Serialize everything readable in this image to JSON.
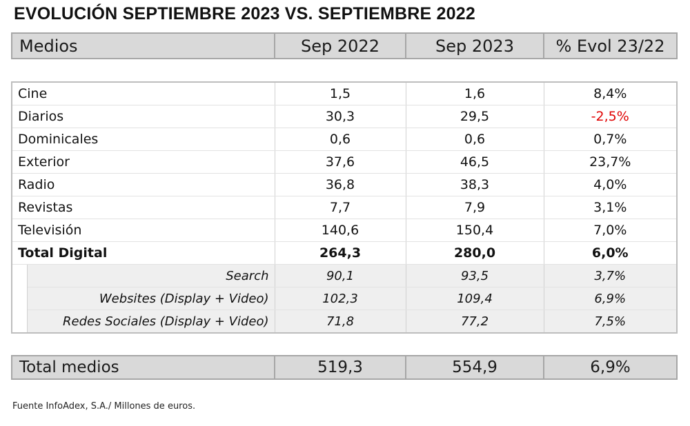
{
  "title": "EVOLUCIÓN SEPTIEMBRE 2023 VS. SEPTIEMBRE 2022",
  "header": [
    "Medios",
    "Sep 2022",
    "Sep 2023",
    "% Evol 23/22"
  ],
  "rows": [
    {
      "label": "Cine",
      "sep2022": "1,5",
      "sep2023": "1,6",
      "evol": "8,4%"
    },
    {
      "label": "Diarios",
      "sep2022": "30,3",
      "sep2023": "29,5",
      "evol": "-2,5%",
      "negative": true
    },
    {
      "label": "Dominicales",
      "sep2022": "0,6",
      "sep2023": "0,6",
      "evol": "0,7%"
    },
    {
      "label": "Exterior",
      "sep2022": "37,6",
      "sep2023": "46,5",
      "evol": "23,7%"
    },
    {
      "label": "Radio",
      "sep2022": "36,8",
      "sep2023": "38,3",
      "evol": "4,0%"
    },
    {
      "label": "Revistas",
      "sep2022": "7,7",
      "sep2023": "7,9",
      "evol": "3,1%"
    },
    {
      "label": "Televisión",
      "sep2022": "140,6",
      "sep2023": "150,4",
      "evol": "7,0%"
    },
    {
      "label": "Total Digital",
      "sep2022": "264,3",
      "sep2023": "280,0",
      "evol": "6,0%",
      "bold": true
    }
  ],
  "subrows": [
    {
      "label": "Search",
      "sep2022": "90,1",
      "sep2023": "93,5",
      "evol": "3,7%"
    },
    {
      "label": "Websites (Display + Video)",
      "sep2022": "102,3",
      "sep2023": "109,4",
      "evol": "6,9%"
    },
    {
      "label": "Redes Sociales (Display + Video)",
      "sep2022": "71,8",
      "sep2023": "77,2",
      "evol": "7,5%"
    }
  ],
  "total": {
    "label": "Total medios",
    "sep2022": "519,3",
    "sep2023": "554,9",
    "evol": "6,9%"
  },
  "footnote": "Fuente InfoAdex, S.A./ Millones de euros.",
  "colors": {
    "negative": "#e00000",
    "header_bg": "#d9d9d9",
    "sub_bg": "#efefef"
  }
}
